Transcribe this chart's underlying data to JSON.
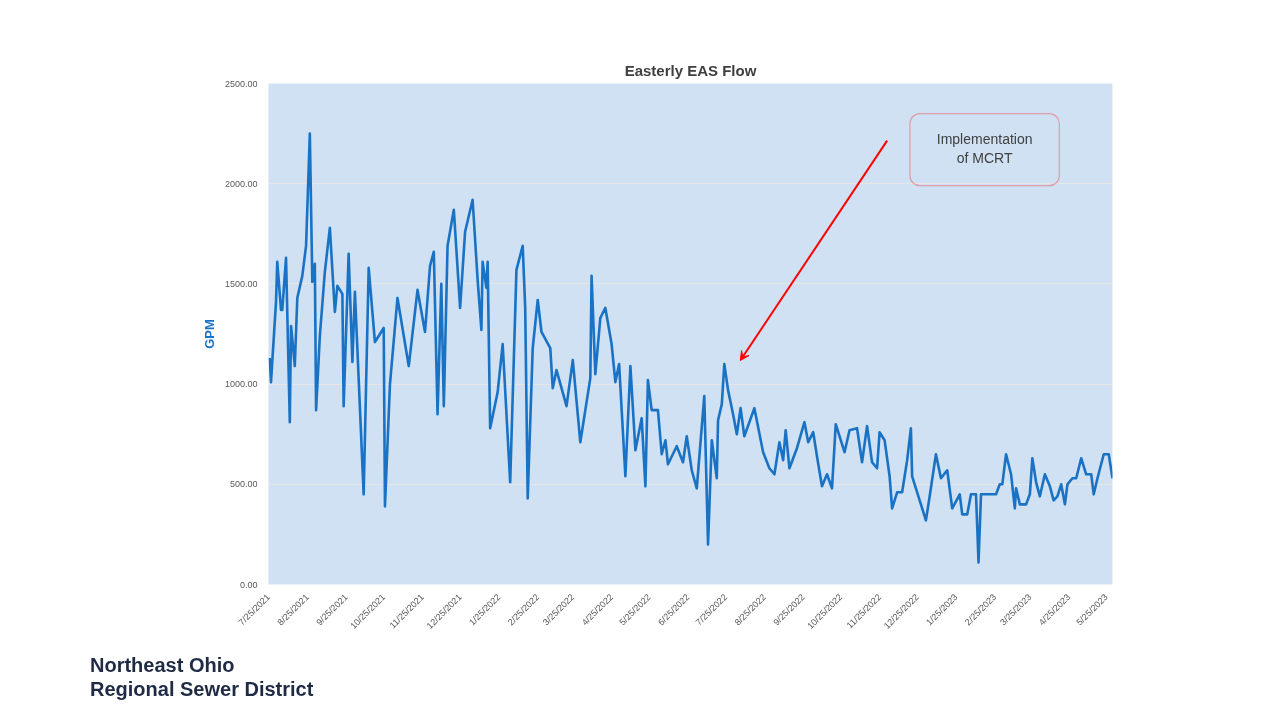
{
  "chart_data": {
    "type": "line",
    "title": "Easterly EAS Flow",
    "ylabel": "GPM",
    "x": [
      "2021-07-26",
      "2021-07-27",
      "2021-07-31",
      "2021-08-01",
      "2021-08-04",
      "2021-08-05",
      "2021-08-08",
      "2021-08-11",
      "2021-08-12",
      "2021-08-15",
      "2021-08-17",
      "2021-08-21",
      "2021-08-24",
      "2021-08-27",
      "2021-08-29",
      "2021-08-31",
      "2021-09-01",
      "2021-09-04",
      "2021-09-08",
      "2021-09-12",
      "2021-09-16",
      "2021-09-18",
      "2021-09-22",
      "2021-09-23",
      "2021-09-27",
      "2021-09-30",
      "2021-10-02",
      "2021-10-09",
      "2021-10-13",
      "2021-10-18",
      "2021-10-25",
      "2021-10-26",
      "2021-10-30",
      "2021-11-05",
      "2021-11-14",
      "2021-11-21",
      "2021-11-27",
      "2021-12-01",
      "2021-12-04",
      "2021-12-07",
      "2021-12-10",
      "2021-12-12",
      "2021-12-15",
      "2021-12-20",
      "2021-12-25",
      "2021-12-29",
      "2022-01-04",
      "2022-01-08",
      "2022-01-11",
      "2022-01-12",
      "2022-01-15",
      "2022-01-16",
      "2022-01-18",
      "2022-01-24",
      "2022-01-28",
      "2022-02-03",
      "2022-02-08",
      "2022-02-13",
      "2022-02-15",
      "2022-02-17",
      "2022-02-21",
      "2022-02-25",
      "2022-02-28",
      "2022-03-07",
      "2022-03-09",
      "2022-03-12",
      "2022-03-20",
      "2022-03-25",
      "2022-03-31",
      "2022-04-08",
      "2022-04-09",
      "2022-04-12",
      "2022-04-16",
      "2022-04-20",
      "2022-04-25",
      "2022-04-28",
      "2022-05-01",
      "2022-05-06",
      "2022-05-10",
      "2022-05-14",
      "2022-05-19",
      "2022-05-22",
      "2022-05-24",
      "2022-05-27",
      "2022-06-01",
      "2022-06-04",
      "2022-06-07",
      "2022-06-09",
      "2022-06-16",
      "2022-06-21",
      "2022-06-24",
      "2022-06-28",
      "2022-07-02",
      "2022-07-08",
      "2022-07-11",
      "2022-07-14",
      "2022-07-18",
      "2022-07-19",
      "2022-07-22",
      "2022-07-24",
      "2022-07-27",
      "2022-07-31",
      "2022-08-03",
      "2022-08-06",
      "2022-08-09",
      "2022-08-17",
      "2022-08-24",
      "2022-08-29",
      "2022-09-02",
      "2022-09-06",
      "2022-09-09",
      "2022-09-11",
      "2022-09-14",
      "2022-09-20",
      "2022-09-26",
      "2022-09-29",
      "2022-10-03",
      "2022-10-06",
      "2022-10-10",
      "2022-10-14",
      "2022-10-18",
      "2022-10-21",
      "2022-10-28",
      "2022-11-01",
      "2022-11-07",
      "2022-11-11",
      "2022-11-15",
      "2022-11-19",
      "2022-11-23",
      "2022-11-25",
      "2022-11-29",
      "2022-12-03",
      "2022-12-05",
      "2022-12-09",
      "2022-12-13",
      "2022-12-17",
      "2022-12-20",
      "2022-12-21",
      "2022-12-29",
      "2023-01-01",
      "2023-01-04",
      "2023-01-09",
      "2023-01-13",
      "2023-01-18",
      "2023-01-22",
      "2023-01-28",
      "2023-01-30",
      "2023-02-03",
      "2023-02-06",
      "2023-02-10",
      "2023-02-12",
      "2023-02-14",
      "2023-02-26",
      "2023-03-01",
      "2023-03-03",
      "2023-03-06",
      "2023-03-10",
      "2023-03-13",
      "2023-03-14",
      "2023-03-17",
      "2023-03-22",
      "2023-03-25",
      "2023-03-27",
      "2023-03-30",
      "2023-04-02",
      "2023-04-06",
      "2023-04-10",
      "2023-04-13",
      "2023-04-16",
      "2023-04-19",
      "2023-04-22",
      "2023-04-24",
      "2023-04-28",
      "2023-05-01",
      "2023-05-05",
      "2023-05-09",
      "2023-05-13",
      "2023-05-15",
      "2023-05-18",
      "2023-05-23",
      "2023-05-27",
      "2023-05-30"
    ],
    "series": [
      {
        "color": "#1a72c4",
        "values": [
          1130,
          1010,
          1410,
          1610,
          1370,
          1370,
          1630,
          810,
          1290,
          1090,
          1430,
          1540,
          1690,
          2250,
          1510,
          1600,
          870,
          1240,
          1560,
          1780,
          1360,
          1490,
          1450,
          890,
          1650,
          1110,
          1460,
          450,
          1580,
          1210,
          1280,
          390,
          1000,
          1430,
          1090,
          1470,
          1260,
          1590,
          1660,
          850,
          1500,
          890,
          1690,
          1870,
          1380,
          1760,
          1920,
          1520,
          1270,
          1610,
          1480,
          1610,
          780,
          960,
          1200,
          510,
          1570,
          1690,
          1380,
          430,
          1180,
          1420,
          1260,
          1180,
          980,
          1070,
          890,
          1120,
          710,
          1030,
          1540,
          1050,
          1330,
          1380,
          1200,
          1010,
          1100,
          540,
          1090,
          670,
          830,
          490,
          1020,
          870,
          870,
          650,
          720,
          600,
          690,
          610,
          740,
          570,
          480,
          940,
          200,
          720,
          530,
          820,
          900,
          1100,
          970,
          850,
          750,
          880,
          740,
          880,
          660,
          580,
          550,
          710,
          620,
          770,
          580,
          680,
          810,
          710,
          760,
          640,
          490,
          550,
          480,
          800,
          660,
          770,
          780,
          610,
          790,
          610,
          580,
          760,
          720,
          540,
          380,
          460,
          460,
          620,
          780,
          540,
          380,
          320,
          440,
          650,
          530,
          570,
          380,
          450,
          350,
          350,
          450,
          450,
          110,
          450,
          450,
          500,
          500,
          650,
          550,
          380,
          480,
          400,
          400,
          450,
          630,
          510,
          440,
          550,
          490,
          420,
          440,
          500,
          400,
          500,
          530,
          530,
          630,
          550,
          550,
          450,
          530,
          650,
          650,
          530
        ]
      }
    ],
    "xlim": [
      "2021-07-25",
      "2023-05-30"
    ],
    "xticks": [
      {
        "value": "2021-07-25",
        "label": "7/25/2021"
      },
      {
        "value": "2021-08-25",
        "label": "8/25/2021"
      },
      {
        "value": "2021-09-25",
        "label": "9/25/2021"
      },
      {
        "value": "2021-10-25",
        "label": "10/25/2021"
      },
      {
        "value": "2021-11-25",
        "label": "11/25/2021"
      },
      {
        "value": "2021-12-25",
        "label": "12/25/2021"
      },
      {
        "value": "2022-01-25",
        "label": "1/25/2022"
      },
      {
        "value": "2022-02-25",
        "label": "2/25/2022"
      },
      {
        "value": "2022-03-25",
        "label": "3/25/2022"
      },
      {
        "value": "2022-04-25",
        "label": "4/25/2022"
      },
      {
        "value": "2022-05-25",
        "label": "5/25/2022"
      },
      {
        "value": "2022-06-25",
        "label": "6/25/2022"
      },
      {
        "value": "2022-07-25",
        "label": "7/25/2022"
      },
      {
        "value": "2022-08-25",
        "label": "8/25/2022"
      },
      {
        "value": "2022-09-25",
        "label": "9/25/2022"
      },
      {
        "value": "2022-10-25",
        "label": "10/25/2022"
      },
      {
        "value": "2022-11-25",
        "label": "11/25/2022"
      },
      {
        "value": "2022-12-25",
        "label": "12/25/2022"
      },
      {
        "value": "2023-01-25",
        "label": "1/25/2023"
      },
      {
        "value": "2023-02-25",
        "label": "2/25/2023"
      },
      {
        "value": "2023-03-25",
        "label": "3/25/2023"
      },
      {
        "value": "2023-04-25",
        "label": "4/25/2023"
      },
      {
        "value": "2023-05-25",
        "label": "5/25/2023"
      }
    ],
    "ylim": [
      0,
      2500
    ],
    "yticks": [
      {
        "value": 0,
        "label": "0.00"
      },
      {
        "value": 500,
        "label": "500.00"
      },
      {
        "value": 1000,
        "label": "1000.00"
      },
      {
        "value": 1500,
        "label": "1500.00"
      },
      {
        "value": 2000,
        "label": "2000.00"
      },
      {
        "value": 2500,
        "label": "2500.00"
      }
    ],
    "grid": "y",
    "marker": "none",
    "line_style": "solid",
    "annotations": [
      "Implementation\nof MCRT",
      "Northeast Ohio\nRegional Sewer District"
    ]
  }
}
